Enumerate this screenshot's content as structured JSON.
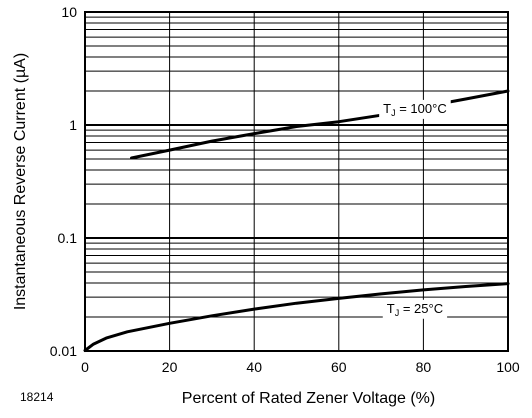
{
  "chart_data": {
    "type": "line",
    "title": "",
    "xlabel": "Percent of Rated Zener Voltage (%)",
    "ylabel": "Instantaneous Reverse Current (µA)",
    "xlim": [
      0,
      100
    ],
    "ylim": [
      0.01,
      10
    ],
    "yscale": "log",
    "grid": true,
    "x_ticks": [
      "0",
      "20",
      "40",
      "60",
      "80",
      "100"
    ],
    "y_ticks": [
      "0.01",
      "0.1",
      "1",
      "10"
    ],
    "figure_id": "18214",
    "series": [
      {
        "name": "TJ = 100°C",
        "label_main": "T",
        "label_sub": "J",
        "label_rest": " = 100°C",
        "x": [
          11,
          20,
          30,
          40,
          50,
          60,
          70,
          80,
          90,
          100
        ],
        "y": [
          0.51,
          0.6,
          0.72,
          0.84,
          0.97,
          1.07,
          1.22,
          1.45,
          1.7,
          2.0
        ]
      },
      {
        "name": "TJ = 25°C",
        "label_main": "T",
        "label_sub": "J",
        "label_rest": " = 25°C",
        "x": [
          0,
          2,
          5,
          10,
          20,
          30,
          40,
          50,
          60,
          70,
          80,
          90,
          100
        ],
        "y": [
          0.0101,
          0.0115,
          0.013,
          0.0148,
          0.0176,
          0.0205,
          0.0235,
          0.0265,
          0.0292,
          0.032,
          0.0347,
          0.0372,
          0.0395
        ]
      }
    ]
  }
}
